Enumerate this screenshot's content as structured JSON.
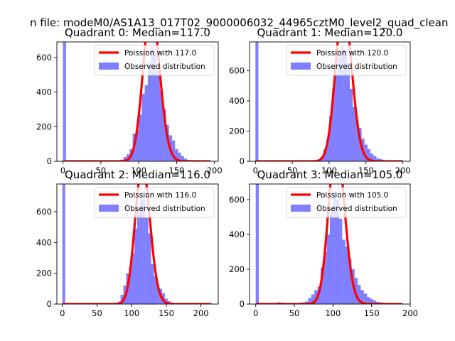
{
  "chart_data": {
    "suptitle": "n file: modeM0/AS1A13_017T02_9000006032_44965cztM0_level2_quad_clean",
    "type": "bar",
    "panels": [
      {
        "title": "Quadrant 0: Median=117.0",
        "xlim": [
          -8,
          205
        ],
        "ylim": [
          0,
          690
        ],
        "xticks": [
          0,
          50,
          100,
          150,
          200
        ],
        "yticks": [
          0,
          200,
          400,
          600
        ],
        "bin_width": 4,
        "spike": {
          "x": 0,
          "height": 690
        },
        "hist_x": [
          76,
          80,
          84,
          88,
          92,
          96,
          100,
          104,
          108,
          112,
          116,
          120,
          124,
          128,
          132,
          136,
          140,
          144,
          148,
          152,
          156,
          160,
          164,
          168
        ],
        "hist_y": [
          10,
          25,
          40,
          70,
          160,
          180,
          270,
          390,
          440,
          570,
          660,
          630,
          520,
          410,
          300,
          210,
          150,
          120,
          70,
          50,
          30,
          15,
          8,
          4
        ],
        "poisson_mean": 117.0,
        "legend": [
          "Poission with 117.0",
          "Observed distribution"
        ]
      },
      {
        "title": "Quadrant 1: Median=120.0",
        "xlim": [
          -8,
          210
        ],
        "ylim": [
          0,
          790
        ],
        "xticks": [
          0,
          50,
          100,
          150,
          200
        ],
        "yticks": [
          0,
          200,
          400,
          600
        ],
        "bin_width": 4,
        "spike": {
          "x": 0,
          "height": 790
        },
        "hist_x": [
          84,
          88,
          92,
          96,
          100,
          104,
          108,
          112,
          116,
          120,
          124,
          128,
          132,
          136,
          140,
          144,
          148,
          152,
          156,
          160,
          164,
          168,
          172
        ],
        "hist_y": [
          10,
          30,
          80,
          140,
          300,
          480,
          580,
          690,
          760,
          740,
          650,
          480,
          360,
          270,
          220,
          150,
          110,
          80,
          50,
          35,
          20,
          15,
          10
        ],
        "poisson_mean": 120.0,
        "legend": [
          "Poission with 120.0",
          "Observed distribution"
        ]
      },
      {
        "title": "Quadrant 2: Median=116.0",
        "xlim": [
          -8,
          225
        ],
        "ylim": [
          0,
          780
        ],
        "xticks": [
          0,
          50,
          100,
          150,
          200
        ],
        "yticks": [
          0,
          200,
          400,
          600
        ],
        "bin_width": 4,
        "spike": {
          "x": 0,
          "height": 780
        },
        "hist_x": [
          80,
          84,
          88,
          92,
          96,
          100,
          104,
          108,
          112,
          116,
          120,
          124,
          128,
          132,
          136,
          140,
          144,
          148,
          152,
          156,
          160
        ],
        "hist_y": [
          15,
          60,
          120,
          200,
          240,
          330,
          490,
          610,
          720,
          680,
          560,
          460,
          260,
          180,
          120,
          100,
          70,
          35,
          20,
          10,
          5
        ],
        "poisson_mean": 116.0,
        "legend": [
          "Poission with 116.0",
          "Observed distribution"
        ]
      },
      {
        "title": "Quadrant 3: Median=105.0",
        "xlim": [
          -8,
          200
        ],
        "ylim": [
          0,
          690
        ],
        "xticks": [
          0,
          50,
          100,
          150,
          200
        ],
        "yticks": [
          0,
          200,
          400,
          600
        ],
        "bin_width": 4,
        "spike": {
          "x": 0,
          "height": 690
        },
        "hist_x": [
          20,
          24,
          28,
          32,
          36,
          40,
          44,
          48,
          52,
          56,
          60,
          64,
          68,
          72,
          76,
          80,
          84,
          88,
          92,
          96,
          100,
          104,
          108,
          112,
          116,
          120,
          124,
          128,
          132,
          136,
          140,
          144,
          148,
          152,
          156,
          160,
          164,
          168,
          172,
          176,
          180,
          184,
          188
        ],
        "hist_y": [
          4,
          6,
          10,
          8,
          6,
          5,
          4,
          4,
          6,
          8,
          10,
          15,
          35,
          55,
          80,
          100,
          210,
          300,
          400,
          550,
          640,
          600,
          490,
          370,
          330,
          260,
          200,
          150,
          110,
          80,
          60,
          40,
          30,
          20,
          12,
          10,
          8,
          6,
          5,
          4,
          3,
          3,
          2
        ],
        "poisson_mean": 105.0,
        "legend": [
          "Poission with 105.0",
          "Observed distribution"
        ]
      }
    ]
  }
}
